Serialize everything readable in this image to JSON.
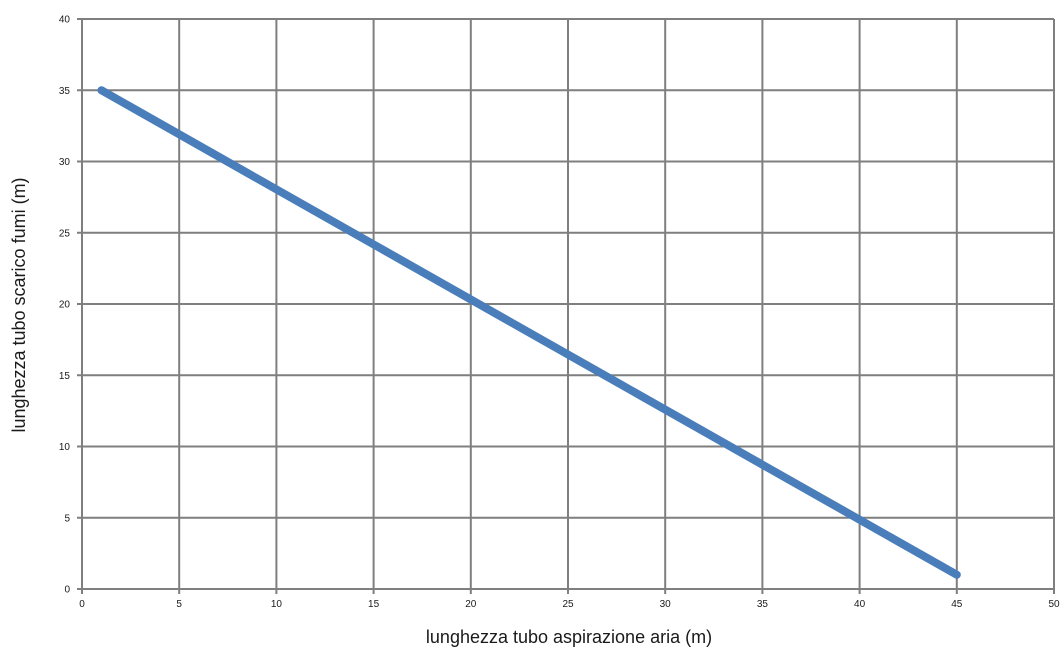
{
  "chart_data": {
    "type": "line",
    "title": "",
    "xlabel": "lunghezza tubo aspirazione aria (m)",
    "ylabel": "lunghezza tubo scarico fumi (m)",
    "xlim": [
      0,
      50
    ],
    "ylim": [
      0,
      40
    ],
    "x_ticks": [
      0,
      5,
      10,
      15,
      20,
      25,
      30,
      35,
      40,
      45,
      50
    ],
    "y_ticks": [
      0,
      5,
      10,
      15,
      20,
      25,
      30,
      35,
      40
    ],
    "grid": true,
    "series": [
      {
        "x": [
          1,
          45
        ],
        "y": [
          35,
          1
        ],
        "color": "#4a7ebb"
      }
    ]
  }
}
